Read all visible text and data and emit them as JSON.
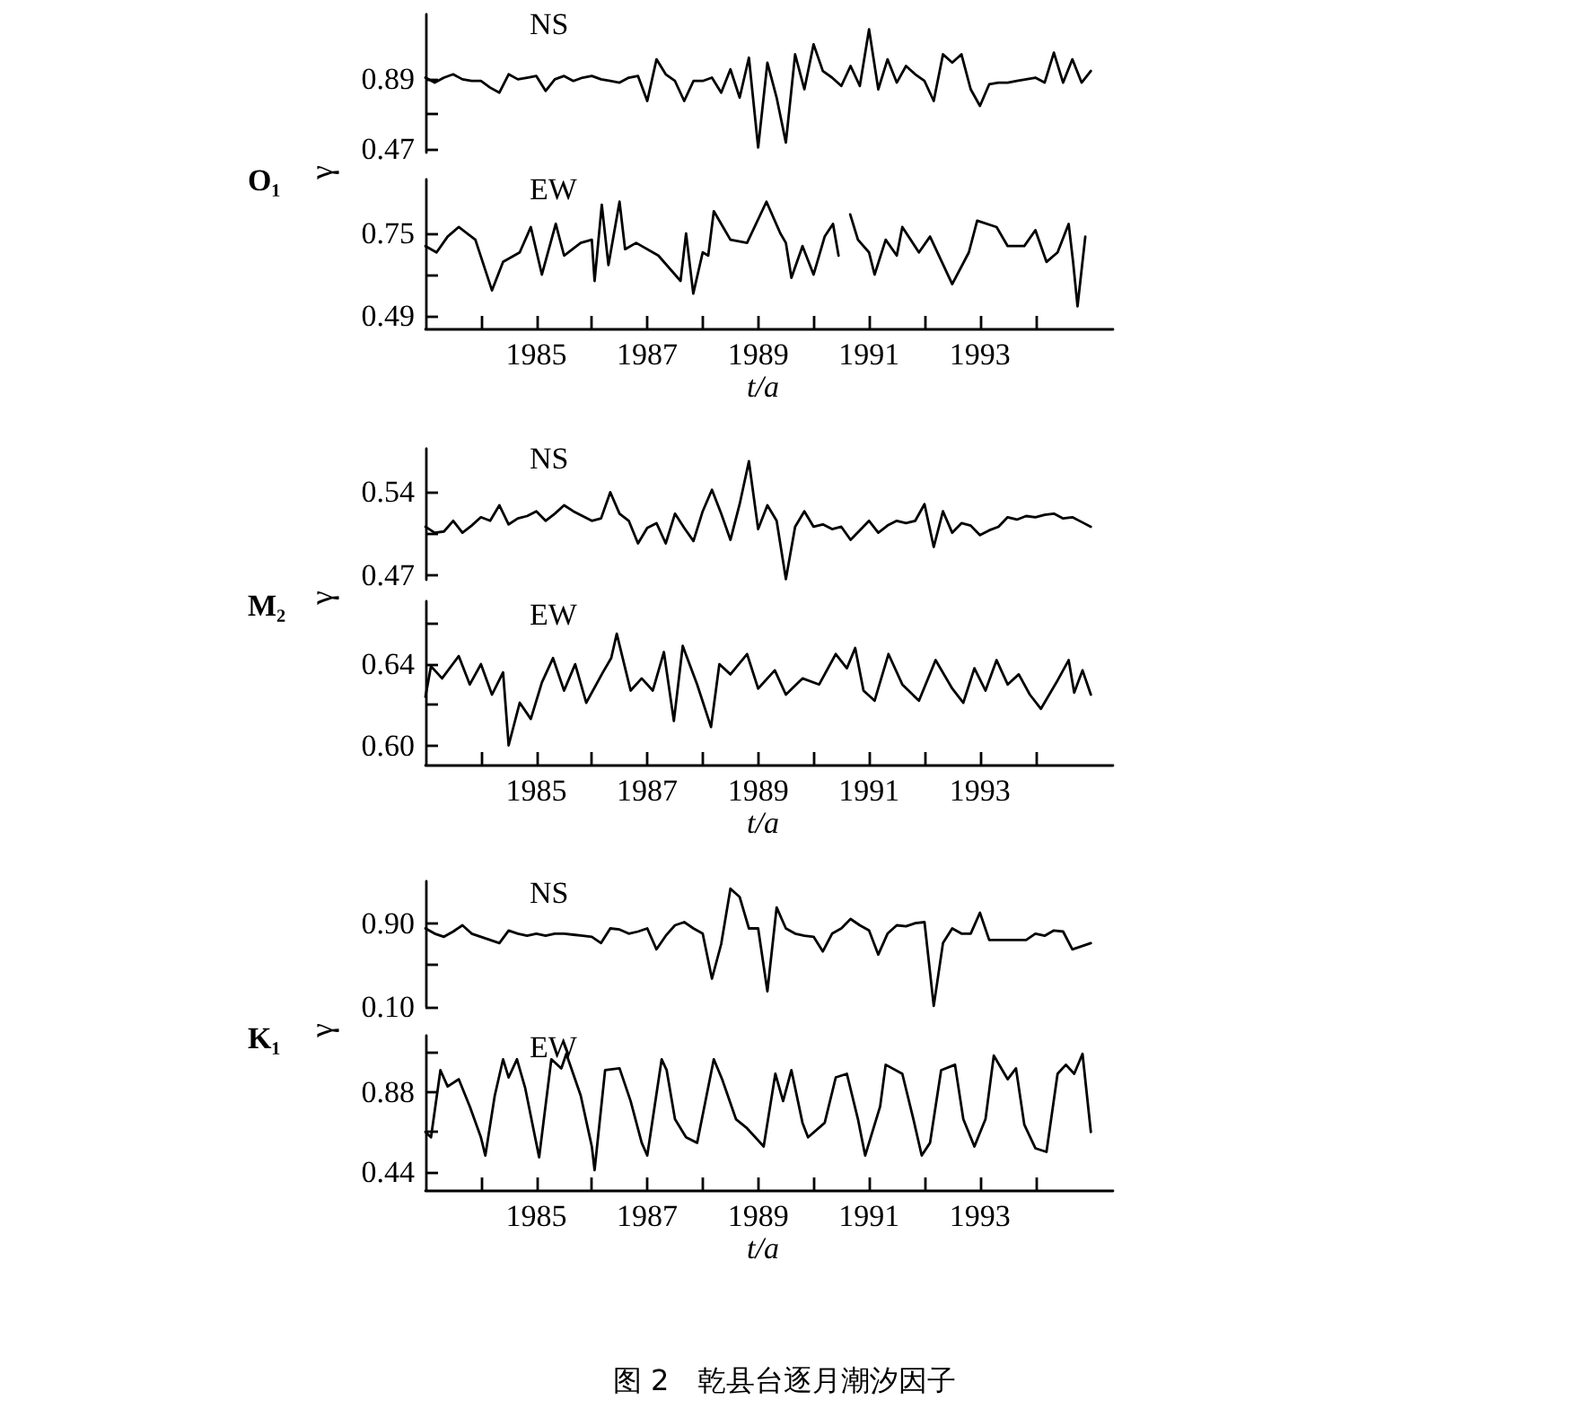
{
  "chart_data": [
    {
      "type": "line",
      "title": "NS",
      "ylim": [
        0.45,
        1.28
      ],
      "yticks": [
        0.47,
        {
          "value": 0.68,
          "label": null
        },
        0.89
      ],
      "tick_labels": "y",
      "marker": "none",
      "line_style": "solid",
      "color": "#000000",
      "categories": [
        null,
        null,
        null,
        null,
        null,
        null,
        null,
        null,
        null,
        null,
        null,
        null,
        null,
        null,
        null,
        null,
        null,
        null,
        null,
        null,
        null,
        null,
        null,
        null,
        null,
        null,
        null,
        null,
        null,
        null,
        null,
        null,
        null,
        null,
        null,
        null,
        null,
        null,
        null,
        null,
        null,
        null,
        null,
        null,
        null,
        null,
        null,
        null,
        null,
        null,
        null,
        null,
        null,
        null,
        null,
        null,
        null,
        null,
        null,
        null,
        null,
        null,
        null,
        null,
        null,
        null,
        null,
        null,
        null,
        null,
        null,
        null,
        null
      ],
      "values": [
        0.9,
        0.87,
        0.9,
        0.92,
        0.89,
        0.88,
        0.88,
        0.84,
        0.81,
        0.92,
        0.89,
        0.9,
        0.91,
        0.82,
        0.89,
        0.91,
        0.88,
        0.9,
        0.91,
        0.89,
        0.88,
        0.87,
        0.9,
        0.91,
        0.76,
        1.01,
        0.92,
        0.88,
        0.76,
        0.88,
        0.88,
        0.9,
        0.81,
        0.95,
        0.78,
        1.02,
        0.48,
        0.99,
        0.78,
        0.51,
        1.04,
        0.83,
        1.1,
        0.94,
        0.9,
        0.85,
        0.97,
        0.85,
        1.19,
        0.83,
        1.01,
        0.87,
        0.97,
        0.92,
        0.88,
        0.76,
        1.04,
        0.99,
        1.04,
        0.83,
        0.73,
        0.86,
        0.87,
        0.87,
        0.88,
        0.89,
        0.9,
        0.87,
        1.05,
        0.87,
        1.01,
        0.87,
        0.94
      ]
    },
    {
      "type": "line",
      "title": "EW",
      "ylabel": "γ",
      "annotations": [
        "O₁"
      ],
      "xlabel": "t/a",
      "xlim": [
        1983,
        1995.4
      ],
      "xticks": [
        {
          "value": 1984,
          "label": null
        },
        1985,
        {
          "value": 1986,
          "label": null
        },
        1987,
        {
          "value": 1988,
          "label": null
        },
        1989,
        {
          "value": 1990,
          "label": null
        },
        1991,
        {
          "value": 1992,
          "label": null
        },
        1993,
        {
          "value": 1994,
          "label": null
        }
      ],
      "ylim": [
        0.45,
        0.92
      ],
      "yticks": [
        0.49,
        {
          "value": 0.62,
          "label": null
        },
        0.75
      ],
      "marker": "none",
      "line_style": "solid",
      "color": "#000000",
      "x": [
        1983.0,
        1983.2,
        1983.4,
        1983.6,
        1983.9,
        1984.2,
        1984.4,
        1984.7,
        1984.9,
        1985.1,
        1985.35,
        1985.5,
        1985.8,
        1986.0,
        1986.05,
        1986.18,
        1986.3,
        1986.5,
        1986.6,
        1986.8,
        1987.2,
        1987.6,
        1987.7,
        1987.83,
        1988.0,
        1988.1,
        1988.2,
        1988.5,
        1988.8,
        1989.15,
        1989.4,
        1989.5,
        1989.6,
        1989.8,
        1990.0,
        1990.2,
        1990.35,
        1990.45,
        1990.55,
        1990.66,
        1990.8,
        1991.0,
        1991.1,
        1991.3,
        1991.5,
        1991.6,
        1991.9,
        1992.1,
        1992.5,
        1992.8,
        1992.95,
        1993.3,
        1993.5,
        1993.8,
        1994.0,
        1994.2,
        1994.4,
        1994.6,
        1994.68,
        1994.76,
        1994.9
      ],
      "values": [
        0.71,
        0.69,
        0.74,
        0.77,
        0.73,
        0.57,
        0.66,
        0.69,
        0.77,
        0.62,
        0.78,
        0.68,
        0.72,
        0.73,
        0.6,
        0.84,
        0.65,
        0.85,
        0.7,
        0.72,
        0.68,
        0.6,
        0.75,
        0.56,
        0.69,
        0.68,
        0.82,
        0.73,
        0.72,
        0.85,
        0.75,
        0.72,
        0.61,
        0.71,
        0.62,
        0.74,
        0.78,
        0.68,
        null,
        0.81,
        0.73,
        0.69,
        0.62,
        0.73,
        0.68,
        0.77,
        0.69,
        0.74,
        0.59,
        0.69,
        0.79,
        0.77,
        0.71,
        0.71,
        0.76,
        0.66,
        0.69,
        0.78,
        0.66,
        0.52,
        0.74
      ]
    },
    {
      "type": "line",
      "title": "NS",
      "ylim": [
        0.4665,
        0.5765
      ],
      "yticks": [
        0.47,
        {
          "value": 0.505,
          "label": null
        },
        0.54
      ],
      "tick_labels": "y",
      "marker": "none",
      "line_style": "solid",
      "color": "#000000",
      "categories": [
        null,
        null,
        null,
        null,
        null,
        null,
        null,
        null,
        null,
        null,
        null,
        null,
        null,
        null,
        null,
        null,
        null,
        null,
        null,
        null,
        null,
        null,
        null,
        null,
        null,
        null,
        null,
        null,
        null,
        null,
        null,
        null,
        null,
        null,
        null,
        null,
        null,
        null,
        null,
        null,
        null,
        null,
        null,
        null,
        null,
        null,
        null,
        null,
        null,
        null,
        null,
        null,
        null,
        null,
        null,
        null,
        null,
        null,
        null,
        null,
        null,
        null,
        null,
        null,
        null,
        null,
        null,
        null,
        null,
        null,
        null,
        null,
        null
      ],
      "values": [
        0.511,
        0.506,
        0.507,
        0.516,
        0.506,
        0.512,
        0.519,
        0.516,
        0.529,
        0.513,
        0.518,
        0.52,
        0.524,
        0.516,
        0.522,
        0.529,
        0.524,
        0.52,
        0.516,
        0.518,
        0.54,
        0.522,
        0.516,
        0.497,
        0.51,
        0.514,
        0.497,
        0.522,
        0.51,
        0.499,
        0.524,
        0.542,
        0.522,
        0.5,
        0.53,
        0.566,
        0.509,
        0.529,
        0.516,
        0.467,
        0.511,
        0.524,
        0.511,
        0.513,
        0.509,
        0.511,
        0.5,
        0.508,
        0.516,
        0.506,
        0.512,
        0.516,
        0.514,
        0.516,
        0.53,
        0.494,
        0.524,
        0.506,
        0.514,
        0.512,
        0.504,
        0.508,
        0.511,
        0.519,
        0.517,
        0.52,
        0.519,
        0.521,
        0.522,
        0.518,
        0.519,
        0.515,
        0.511
      ]
    },
    {
      "type": "line",
      "title": "EW",
      "ylabel": "γ",
      "annotations": [
        "M₂"
      ],
      "xlabel": "t/a",
      "xlim": [
        1983,
        1995.4
      ],
      "xticks": [
        {
          "value": 1984,
          "label": null
        },
        1985,
        {
          "value": 1986,
          "label": null
        },
        1987,
        {
          "value": 1988,
          "label": null
        },
        1989,
        {
          "value": 1990,
          "label": null
        },
        1991,
        {
          "value": 1992,
          "label": null
        },
        1993,
        {
          "value": 1994,
          "label": null
        }
      ],
      "ylim": [
        0.5905,
        0.671
      ],
      "yticks": [
        {
          "value": 0.6,
          "label": "0.60"
        },
        {
          "value": 0.62,
          "label": null
        },
        0.64,
        {
          "value": 0.66,
          "label": null
        }
      ],
      "marker": "none",
      "line_style": "solid",
      "color": "#000000",
      "x": [
        1983.0,
        1983.1,
        1983.3,
        1983.6,
        1983.8,
        1984.0,
        1984.2,
        1984.4,
        1984.5,
        1984.7,
        1984.9,
        1985.1,
        1985.3,
        1985.5,
        1985.7,
        1985.9,
        1986.2,
        1986.35,
        1986.45,
        1986.7,
        1986.9,
        1987.1,
        1987.3,
        1987.48,
        1987.64,
        1987.9,
        1988.15,
        1988.3,
        1988.5,
        1988.8,
        1989.0,
        1989.3,
        1989.5,
        1989.8,
        1990.1,
        1990.4,
        1990.6,
        1990.75,
        1990.9,
        1991.1,
        1991.35,
        1991.6,
        1991.9,
        1992.2,
        1992.5,
        1992.7,
        1992.9,
        1993.1,
        1993.3,
        1993.5,
        1993.7,
        1993.9,
        1994.1,
        1994.4,
        1994.6,
        1994.7,
        1994.85,
        1995.0
      ],
      "values": [
        0.624,
        0.639,
        0.633,
        0.644,
        0.63,
        0.64,
        0.625,
        0.636,
        0.6,
        0.621,
        0.613,
        0.631,
        0.643,
        0.627,
        0.64,
        0.621,
        0.636,
        0.643,
        0.655,
        0.627,
        0.633,
        0.627,
        0.646,
        0.612,
        0.649,
        0.63,
        0.609,
        0.64,
        0.635,
        0.645,
        0.628,
        0.637,
        0.625,
        0.633,
        0.63,
        0.645,
        0.638,
        0.648,
        0.627,
        0.622,
        0.645,
        0.63,
        0.622,
        0.642,
        0.628,
        0.621,
        0.638,
        0.627,
        0.642,
        0.63,
        0.635,
        0.625,
        0.618,
        0.632,
        0.642,
        0.626,
        0.637,
        0.625
      ]
    },
    {
      "type": "line",
      "title": "NS",
      "ylim": [
        0.1,
        1.3
      ],
      "yticks": [
        {
          "value": 0.1,
          "label": "0.10"
        },
        {
          "value": 0.5,
          "label": null
        },
        {
          "value": 0.9,
          "label": "0.90"
        }
      ],
      "tick_labels": "y",
      "marker": "none",
      "line_style": "solid",
      "color": "#000000",
      "categories": [
        null,
        null,
        null,
        null,
        null,
        null,
        null,
        null,
        null,
        null,
        null,
        null,
        null,
        null,
        null,
        null,
        null,
        null,
        null,
        null,
        null,
        null,
        null,
        null,
        null,
        null,
        null,
        null,
        null,
        null,
        null,
        null,
        null,
        null,
        null,
        null,
        null,
        null,
        null,
        null,
        null,
        null,
        null,
        null,
        null,
        null,
        null,
        null,
        null,
        null,
        null,
        null,
        null,
        null,
        null,
        null,
        null,
        null,
        null,
        null,
        null,
        null,
        null,
        null,
        null,
        null,
        null,
        null,
        null,
        null,
        null,
        null,
        null
      ],
      "values": [
        0.85,
        0.8,
        0.77,
        0.82,
        0.88,
        0.8,
        0.77,
        0.74,
        0.71,
        0.83,
        0.8,
        0.78,
        0.8,
        0.78,
        0.8,
        0.8,
        0.79,
        0.78,
        0.77,
        0.71,
        0.85,
        0.84,
        0.8,
        0.82,
        0.85,
        0.65,
        0.78,
        0.88,
        0.91,
        0.85,
        0.8,
        0.37,
        0.7,
        1.23,
        1.15,
        0.85,
        0.85,
        0.25,
        1.05,
        0.85,
        0.8,
        0.78,
        0.77,
        0.63,
        0.8,
        0.85,
        0.94,
        0.88,
        0.83,
        0.6,
        0.8,
        0.88,
        0.87,
        0.9,
        0.91,
        0.11,
        0.71,
        0.85,
        0.8,
        0.8,
        1.0,
        0.74,
        0.74,
        0.74,
        0.74,
        0.74,
        0.8,
        0.78,
        0.83,
        0.82,
        0.65,
        0.68,
        0.71
      ]
    },
    {
      "type": "line",
      "title": "EW",
      "ylabel": "γ",
      "annotations": [
        "K₁",
        "图 2　乾县台逐月潮汐因子"
      ],
      "xlabel": "t/a",
      "xlim": [
        1983,
        1995.4
      ],
      "xticks": [
        {
          "value": 1984,
          "label": null
        },
        1985,
        {
          "value": 1986,
          "label": null
        },
        1987,
        {
          "value": 1988,
          "label": null
        },
        1989,
        {
          "value": 1990,
          "label": null
        },
        1991,
        {
          "value": 1992,
          "label": null
        },
        1993,
        {
          "value": 1994,
          "label": null
        }
      ],
      "ylim": [
        0.34,
        1.19
      ],
      "yticks": [
        0.44,
        {
          "value": 0.66,
          "label": null
        },
        0.88,
        {
          "value": 1.1,
          "label": null
        }
      ],
      "marker": "none",
      "line_style": "solid",
      "color": "#000000",
      "x": [
        1983.0,
        1983.1,
        1983.27,
        1983.4,
        1983.6,
        1983.8,
        1984.0,
        1984.08,
        1984.25,
        1984.4,
        1984.5,
        1984.65,
        1984.8,
        1985.05,
        1985.27,
        1985.45,
        1985.54,
        1985.8,
        1986.0,
        1986.05,
        1986.24,
        1986.5,
        1986.7,
        1986.9,
        1987.0,
        1987.26,
        1987.35,
        1987.5,
        1987.7,
        1987.9,
        1988.2,
        1988.35,
        1988.6,
        1988.8,
        1989.1,
        1989.31,
        1989.45,
        1989.6,
        1989.8,
        1989.9,
        1990.2,
        1990.4,
        1990.6,
        1990.8,
        1990.93,
        1991.2,
        1991.3,
        1991.6,
        1991.8,
        1991.95,
        1992.1,
        1992.3,
        1992.55,
        1992.7,
        1992.9,
        1993.1,
        1993.25,
        1993.5,
        1993.65,
        1993.8,
        1994.0,
        1994.2,
        1994.4,
        1994.55,
        1994.7,
        1994.85,
        1995.0
      ],
      "values": [
        0.66,
        0.63,
        1.0,
        0.91,
        0.95,
        0.8,
        0.63,
        0.53,
        0.86,
        1.06,
        0.96,
        1.06,
        0.9,
        0.52,
        1.06,
        1.01,
        1.09,
        0.86,
        0.58,
        0.45,
        1.0,
        1.01,
        0.83,
        0.6,
        0.53,
        1.06,
        1.0,
        0.73,
        0.63,
        0.6,
        1.06,
        0.95,
        0.73,
        0.68,
        0.58,
        0.98,
        0.83,
        1.0,
        0.71,
        0.63,
        0.71,
        0.96,
        0.98,
        0.73,
        0.53,
        0.8,
        1.03,
        0.98,
        0.73,
        0.53,
        0.6,
        1.0,
        1.03,
        0.73,
        0.58,
        0.73,
        1.08,
        0.95,
        1.01,
        0.7,
        0.57,
        0.55,
        0.98,
        1.03,
        0.98,
        1.09,
        0.66
      ]
    }
  ]
}
